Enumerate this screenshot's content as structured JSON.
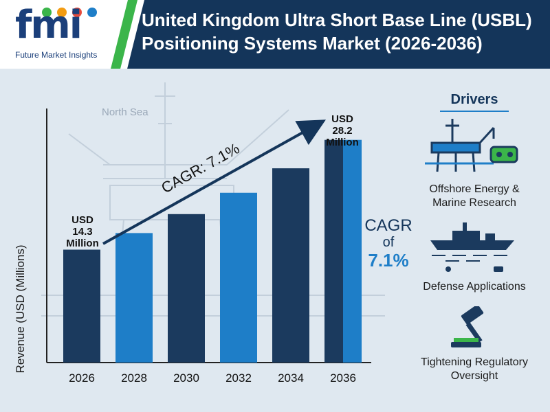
{
  "header": {
    "brand": "fmi",
    "brand_sub": "Future Market Insights",
    "title": "United Kingdom Ultra Short Base Line (USBL) Positioning Systems Market (2026-2036)"
  },
  "background_label": "North Sea",
  "chart_data": {
    "type": "bar",
    "categories": [
      "2026",
      "2028",
      "2030",
      "2032",
      "2034",
      "2036"
    ],
    "values": [
      14.3,
      16.4,
      18.8,
      21.5,
      24.6,
      28.2
    ],
    "ylabel": "Revenue (USD (Millions)",
    "ylim": [
      0,
      32
    ],
    "grid": false,
    "annotations": {
      "first": [
        "USD",
        "14.3",
        "Million"
      ],
      "last": [
        "USD",
        "28.2",
        "Million"
      ],
      "arrow_label": "CAGR: 7.1%"
    }
  },
  "cagr": {
    "line1": "CAGR",
    "line2": "of",
    "line3": "7.1%"
  },
  "drivers": {
    "title": "Drivers",
    "items": [
      {
        "label_line1": "Offshore Energy &",
        "label_line2": "Marine Research",
        "icon": "offshore-platform-icon"
      },
      {
        "label_line1": "Defense Applications",
        "label_line2": "",
        "icon": "naval-ship-icon"
      },
      {
        "label_line1": "Tightening Regulatory",
        "label_line2": "Oversight",
        "icon": "gavel-icon"
      }
    ]
  },
  "colors": {
    "navy": "#14355a",
    "dark_bar": "#1b3a5e",
    "light_bar": "#1e7ec8",
    "accent_green": "#3bb54a"
  }
}
